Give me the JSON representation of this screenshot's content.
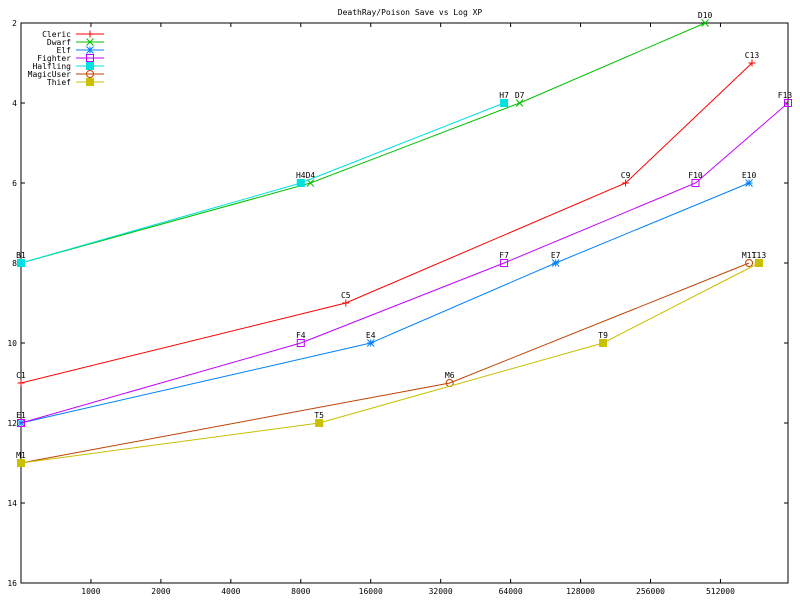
{
  "chart_data": {
    "type": "line",
    "title": "DeathRay/Poison Save vs Log XP",
    "xscale": "log2",
    "xlim": [
      500,
      1000000
    ],
    "ylim": [
      16,
      2
    ],
    "x_ticks": [
      {
        "value": 1000,
        "label": "1000"
      },
      {
        "value": 2000,
        "label": "2000"
      },
      {
        "value": 4000,
        "label": "4000"
      },
      {
        "value": 8000,
        "label": "8000"
      },
      {
        "value": 16000,
        "label": "16000"
      },
      {
        "value": 32000,
        "label": "32000"
      },
      {
        "value": 64000,
        "label": "64000"
      },
      {
        "value": 128000,
        "label": "128000"
      },
      {
        "value": 256000,
        "label": "256000"
      },
      {
        "value": 512000,
        "label": "512000"
      }
    ],
    "y_ticks": [
      {
        "value": 2,
        "label": "2"
      },
      {
        "value": 4,
        "label": "4"
      },
      {
        "value": 6,
        "label": "6"
      },
      {
        "value": 8,
        "label": "8"
      },
      {
        "value": 10,
        "label": "10"
      },
      {
        "value": 12,
        "label": "12"
      },
      {
        "value": 14,
        "label": "14"
      },
      {
        "value": 16,
        "label": "16"
      }
    ],
    "legend_position": "top-left",
    "series": [
      {
        "name": "Cleric",
        "color": "#ff0000",
        "marker": "plus",
        "points": [
          {
            "x": 500,
            "y": 11,
            "label": "C1"
          },
          {
            "x": 12500,
            "y": 9,
            "label": "C5"
          },
          {
            "x": 200000,
            "y": 6,
            "label": "C9"
          },
          {
            "x": 700000,
            "y": 3,
            "label": "C13"
          }
        ]
      },
      {
        "name": "Dwarf",
        "color": "#00c000",
        "marker": "cross",
        "points": [
          {
            "x": 500,
            "y": 8,
            "label": "B1"
          },
          {
            "x": 8800,
            "y": 6,
            "label": "D4"
          },
          {
            "x": 70000,
            "y": 4,
            "label": "D7"
          },
          {
            "x": 440000,
            "y": 2,
            "label": "D10"
          }
        ]
      },
      {
        "name": "Elf",
        "color": "#0080ff",
        "marker": "star",
        "points": [
          {
            "x": 500,
            "y": 12,
            "label": "E1"
          },
          {
            "x": 16000,
            "y": 10,
            "label": "E4"
          },
          {
            "x": 100000,
            "y": 8,
            "label": "E7"
          },
          {
            "x": 680000,
            "y": 6,
            "label": "E10"
          }
        ]
      },
      {
        "name": "Fighter",
        "color": "#c000ff",
        "marker": "square",
        "points": [
          {
            "x": 500,
            "y": 12,
            "label": ""
          },
          {
            "x": 8000,
            "y": 10,
            "label": "F4"
          },
          {
            "x": 60000,
            "y": 8,
            "label": "F7"
          },
          {
            "x": 400000,
            "y": 6,
            "label": "F10"
          },
          {
            "x": 1000000,
            "y": 4,
            "label": "F13"
          }
        ]
      },
      {
        "name": "Halfling",
        "color": "#00e0e0",
        "marker": "filled-square",
        "points": [
          {
            "x": 500,
            "y": 8,
            "label": ""
          },
          {
            "x": 8000,
            "y": 6,
            "label": "H4"
          },
          {
            "x": 60000,
            "y": 4,
            "label": "H7"
          }
        ]
      },
      {
        "name": "MagicUser",
        "color": "#c04000",
        "marker": "circle",
        "points": [
          {
            "x": 500,
            "y": 13,
            "label": "M1"
          },
          {
            "x": 35000,
            "y": 11,
            "label": "M6"
          },
          {
            "x": 680000,
            "y": 8,
            "label": "M11"
          }
        ]
      },
      {
        "name": "Thief",
        "color": "#c8c000",
        "marker": "filled-square",
        "points": [
          {
            "x": 500,
            "y": 13,
            "label": ""
          },
          {
            "x": 9600,
            "y": 12,
            "label": "T5"
          },
          {
            "x": 160000,
            "y": 10,
            "label": "T9"
          },
          {
            "x": 750000,
            "y": 8,
            "label": "T13"
          }
        ]
      }
    ]
  }
}
